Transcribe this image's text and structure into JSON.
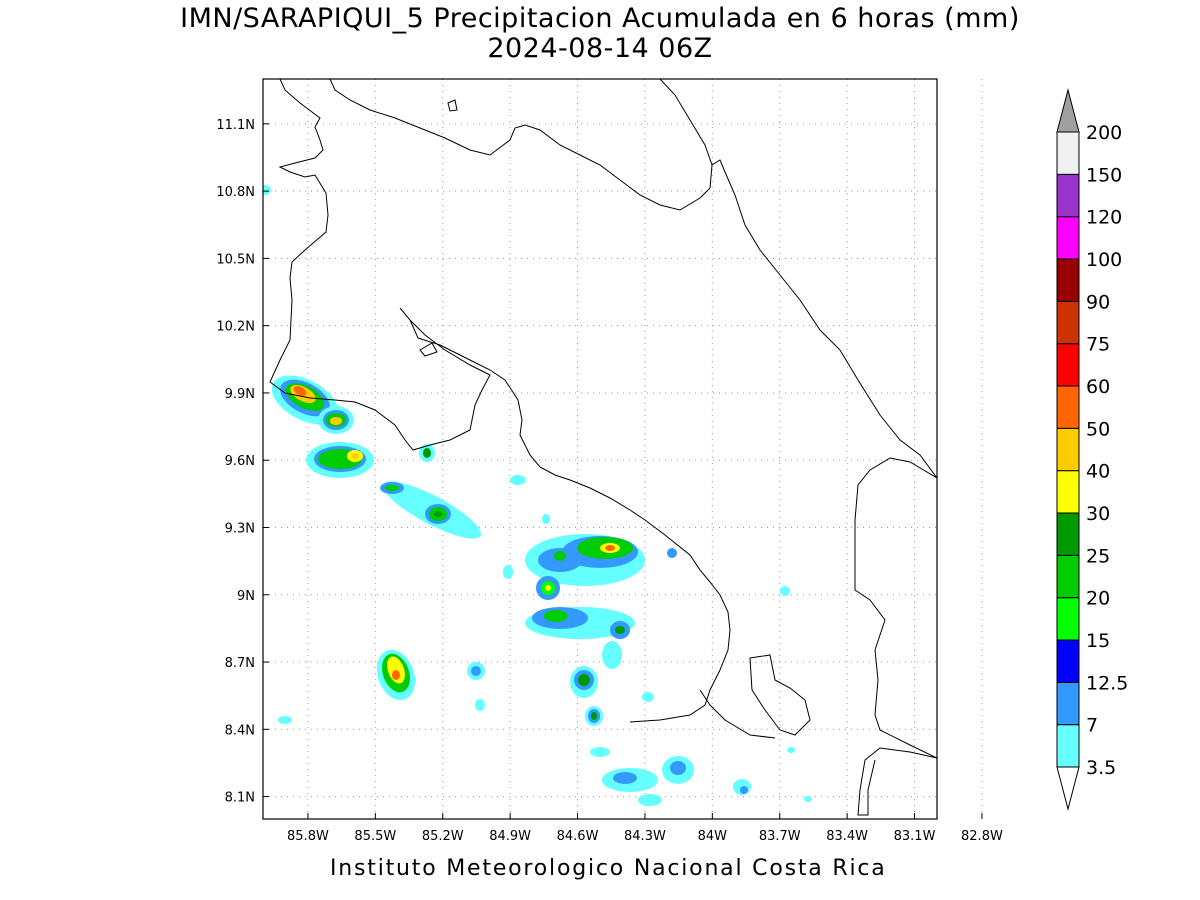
{
  "title": {
    "line1": "IMN/SARAPIQUI_5 Precipitacion Acumulada en 6 horas (mm)",
    "line2": "2024-08-14 06Z"
  },
  "footer": "Instituto Meteorologico Nacional Costa Rica",
  "map": {
    "lon_range": [
      -86.0,
      -83.0
    ],
    "lat_range": [
      8.0,
      11.3
    ],
    "lon_ticks": [
      {
        "value": -85.8,
        "label": "85.8W"
      },
      {
        "value": -85.5,
        "label": "85.5W"
      },
      {
        "value": -85.2,
        "label": "85.2W"
      },
      {
        "value": -84.9,
        "label": "84.9W"
      },
      {
        "value": -84.6,
        "label": "84.6W"
      },
      {
        "value": -84.3,
        "label": "84.3W"
      },
      {
        "value": -84.0,
        "label": "84W"
      },
      {
        "value": -83.7,
        "label": "83.7W"
      },
      {
        "value": -83.4,
        "label": "83.4W"
      },
      {
        "value": -83.1,
        "label": "83.1W"
      },
      {
        "value": -82.8,
        "label": "82.8W"
      }
    ],
    "lat_ticks": [
      {
        "value": 11.1,
        "label": "11.1N"
      },
      {
        "value": 10.8,
        "label": "10.8N"
      },
      {
        "value": 10.5,
        "label": "10.5N"
      },
      {
        "value": 10.2,
        "label": "10.2N"
      },
      {
        "value": 9.9,
        "label": "9.9N"
      },
      {
        "value": 9.6,
        "label": "9.6N"
      },
      {
        "value": 9.3,
        "label": "9.3N"
      },
      {
        "value": 9.0,
        "label": "9N"
      },
      {
        "value": 8.7,
        "label": "8.7N"
      },
      {
        "value": 8.4,
        "label": "8.4N"
      },
      {
        "value": 8.1,
        "label": "8.1N"
      }
    ],
    "grid": true
  },
  "colorbar": {
    "labels": [
      "3.5",
      "7",
      "12.5",
      "15",
      "20",
      "25",
      "30",
      "40",
      "50",
      "60",
      "75",
      "90",
      "100",
      "120",
      "150",
      "200"
    ],
    "colors": [
      "#66ffff",
      "#3399ff",
      "#0000ff",
      "#00ff00",
      "#00cc00",
      "#009900",
      "#ffff00",
      "#ffcc00",
      "#ff6600",
      "#ff0000",
      "#cc3300",
      "#990000",
      "#ff00ff",
      "#9933cc",
      "#f0f0f0"
    ],
    "under_color": "#ffffff",
    "over_color": "#a0a0a0"
  }
}
